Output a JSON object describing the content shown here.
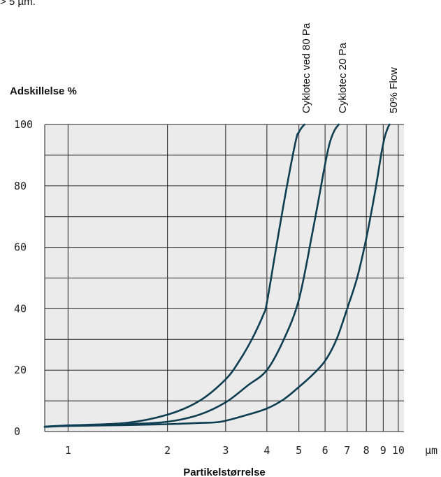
{
  "top_note": "> 5 µm.",
  "chart_data": {
    "type": "line",
    "xlabel": "Partikelstørrelse",
    "ylabel": "Adskillelse %",
    "x_unit": "µm",
    "x_scale": "log",
    "xlim": [
      0.85,
      10.4
    ],
    "ylim": [
      0,
      100
    ],
    "x_ticks": [
      1,
      2,
      3,
      4,
      5,
      6,
      7,
      8,
      9,
      10
    ],
    "y_ticks": [
      0,
      20,
      40,
      60,
      80,
      100
    ],
    "grid": true,
    "background_color": "#ebebeb",
    "grid_color": "#222222",
    "line_color": "#0f3d52",
    "series": [
      {
        "name": "Cyklotec ved 80 Pa",
        "points": [
          [
            0.85,
            1.6
          ],
          [
            1.0,
            2.0
          ],
          [
            1.5,
            2.8
          ],
          [
            2.0,
            5.5
          ],
          [
            2.5,
            10.0
          ],
          [
            3.0,
            17.0
          ],
          [
            3.3,
            23.0
          ],
          [
            3.6,
            30.0
          ],
          [
            3.9,
            38.0
          ],
          [
            4.0,
            42.0
          ],
          [
            4.3,
            62.0
          ],
          [
            4.6,
            80.0
          ],
          [
            4.9,
            95.0
          ],
          [
            5.0,
            97.5
          ],
          [
            5.1,
            99.0
          ],
          [
            5.2,
            100.0
          ]
        ]
      },
      {
        "name": "Cyklotec 20 Pa",
        "points": [
          [
            0.85,
            1.6
          ],
          [
            1.0,
            1.9
          ],
          [
            1.5,
            2.4
          ],
          [
            2.0,
            3.2
          ],
          [
            2.5,
            5.5
          ],
          [
            3.0,
            9.5
          ],
          [
            3.5,
            15.0
          ],
          [
            4.0,
            20.0
          ],
          [
            4.5,
            30.0
          ],
          [
            5.0,
            43.0
          ],
          [
            5.5,
            65.0
          ],
          [
            6.0,
            87.0
          ],
          [
            6.2,
            94.0
          ],
          [
            6.4,
            98.0
          ],
          [
            6.6,
            100.0
          ]
        ]
      },
      {
        "name": "50% Flow",
        "points": [
          [
            0.85,
            1.5
          ],
          [
            1.0,
            1.8
          ],
          [
            1.5,
            2.1
          ],
          [
            2.0,
            2.4
          ],
          [
            2.5,
            2.8
          ],
          [
            2.9,
            3.2
          ],
          [
            3.5,
            5.5
          ],
          [
            4.0,
            7.5
          ],
          [
            4.5,
            10.5
          ],
          [
            5.0,
            14.5
          ],
          [
            5.5,
            18.5
          ],
          [
            6.0,
            23.0
          ],
          [
            6.5,
            30.0
          ],
          [
            7.0,
            40.0
          ],
          [
            7.5,
            50.0
          ],
          [
            8.0,
            63.0
          ],
          [
            8.5,
            78.0
          ],
          [
            8.9,
            91.0
          ],
          [
            9.1,
            96.0
          ],
          [
            9.3,
            99.0
          ],
          [
            9.4,
            100.0
          ]
        ]
      }
    ]
  }
}
